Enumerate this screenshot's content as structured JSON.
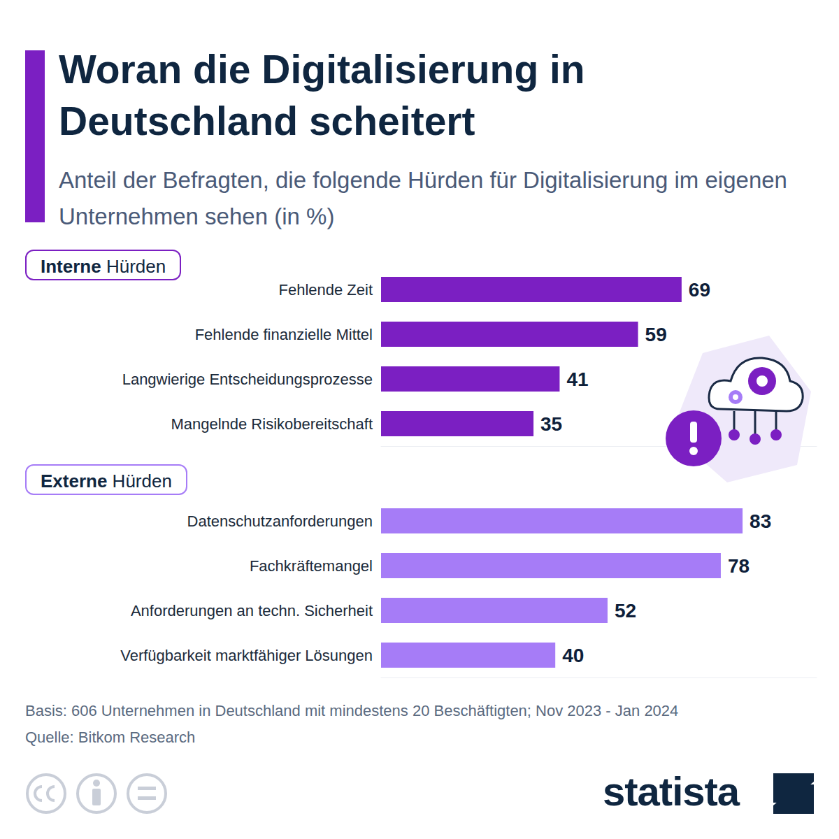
{
  "title": "Woran die Digitalisierung in Deutschland scheitert",
  "subtitle": "Anteil der Befragten, die folgende Hürden für Digitalisierung im eigenen Unternehmen sehen (in %)",
  "chart_data": [
    {
      "type": "bar",
      "title": "Interne Hürden",
      "categories": [
        "Fehlende Zeit",
        "Fehlende finanzielle Mittel",
        "Langwierige Entscheidungsprozesse",
        "Mangelnde Risikobereitschaft"
      ],
      "values": [
        69,
        59,
        41,
        35
      ],
      "color": "#7b1fc2",
      "orientation": "horizontal",
      "data_labels": true,
      "tick_labels": "y",
      "grid": false,
      "xlim": [
        0,
        100
      ]
    },
    {
      "type": "bar",
      "title": "Externe Hürden",
      "categories": [
        "Datenschutzanforderungen",
        "Fachkräftemangel",
        "Anforderungen an techn. Sicherheit",
        "Verfügbarkeit marktfähiger Lösungen"
      ],
      "values": [
        83,
        78,
        52,
        40
      ],
      "color": "#a67cf7",
      "orientation": "horizontal",
      "data_labels": true,
      "tick_labels": "y",
      "grid": false,
      "xlim": [
        0,
        100
      ]
    }
  ],
  "notes": [
    "Basis: 606 Unternehmen in Deutschland mit mindestens 20 Beschäftigten; Nov 2023 - Jan 2024",
    "Quelle: Bitkom Research"
  ],
  "brand": "statista"
}
